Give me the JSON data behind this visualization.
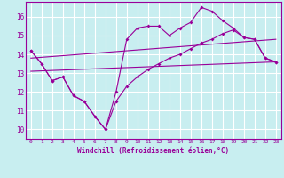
{
  "xlabel": "Windchill (Refroidissement éolien,°C)",
  "bg_color": "#c8eef0",
  "grid_color": "#ffffff",
  "line_color": "#990099",
  "xlim": [
    -0.5,
    23.5
  ],
  "ylim": [
    9.5,
    16.8
  ],
  "yticks": [
    10,
    11,
    12,
    13,
    14,
    15,
    16
  ],
  "xticks": [
    0,
    1,
    2,
    3,
    4,
    5,
    6,
    7,
    8,
    9,
    10,
    11,
    12,
    13,
    14,
    15,
    16,
    17,
    18,
    19,
    20,
    21,
    22,
    23
  ],
  "line1_x": [
    0,
    1,
    2,
    3,
    4,
    5,
    6,
    7,
    8,
    9,
    10,
    11,
    12,
    13,
    14,
    15,
    16,
    17,
    18,
    19,
    20,
    21,
    22,
    23
  ],
  "line1_y": [
    14.2,
    13.5,
    12.6,
    12.8,
    11.8,
    11.5,
    10.7,
    10.0,
    11.5,
    12.3,
    12.8,
    13.2,
    13.5,
    13.8,
    14.0,
    14.3,
    14.6,
    14.8,
    15.1,
    15.3,
    14.9,
    14.8,
    13.8,
    13.6
  ],
  "line2_x": [
    0,
    1,
    2,
    3,
    4,
    5,
    6,
    7,
    8,
    9,
    10,
    11,
    12,
    13,
    14,
    15,
    16,
    17,
    18,
    19,
    20,
    21,
    22,
    23
  ],
  "line2_y": [
    14.2,
    13.5,
    12.6,
    12.8,
    11.8,
    11.5,
    10.7,
    10.0,
    12.0,
    14.8,
    15.4,
    15.5,
    15.5,
    15.0,
    15.4,
    15.7,
    16.5,
    16.3,
    15.8,
    15.4,
    14.9,
    14.8,
    13.8,
    13.6
  ],
  "line3_x": [
    0,
    23
  ],
  "line3_y": [
    13.1,
    13.6
  ],
  "line4_x": [
    0,
    23
  ],
  "line4_y": [
    13.8,
    14.8
  ]
}
